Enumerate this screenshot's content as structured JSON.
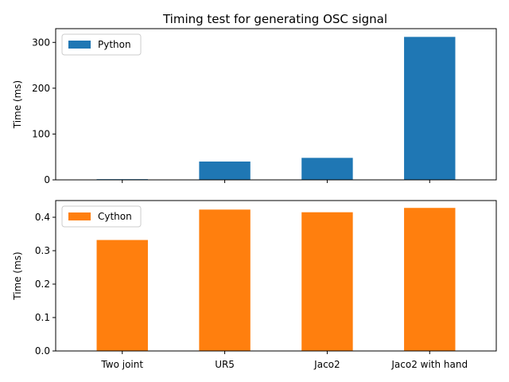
{
  "chart_data": {
    "type": "bar",
    "title": "Timing test for generating OSC signal",
    "categories": [
      "Two joint",
      "UR5",
      "Jaco2",
      "Jaco2 with hand"
    ],
    "subplots": [
      {
        "series": [
          {
            "name": "Python",
            "color": "#1f77b4",
            "values": [
              1.5,
              40,
              48,
              312
            ]
          }
        ],
        "ylabel": "Time (ms)",
        "ylim": [
          0,
          330
        ],
        "yticks": [
          0,
          100,
          200,
          300
        ],
        "legend": "upper-left",
        "show_xticklabels": false
      },
      {
        "series": [
          {
            "name": "Cython",
            "color": "#ff7f0e",
            "values": [
              0.332,
              0.423,
              0.415,
              0.428
            ]
          }
        ],
        "ylabel": "Time (ms)",
        "ylim": [
          0,
          0.45
        ],
        "yticks": [
          0.0,
          0.1,
          0.2,
          0.3,
          0.4
        ],
        "ytick_decimals": 1,
        "legend": "upper-left",
        "show_xticklabels": true
      }
    ]
  }
}
